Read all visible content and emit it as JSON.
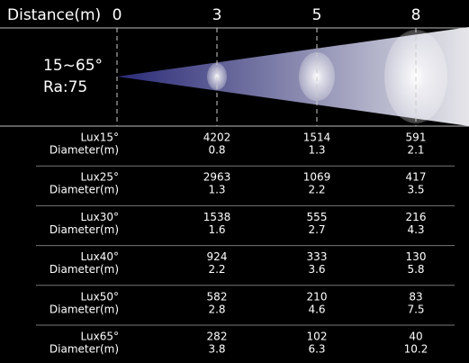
{
  "header": {
    "title": "Distance(m)",
    "distances": [
      0,
      3,
      5,
      8
    ]
  },
  "beam": {
    "angle": "15~65°",
    "ra": "Ra:75"
  },
  "table": {
    "groups": [
      {
        "lux_label": "Lux15°",
        "diameter_label": "Diameter(m)",
        "lux": [
          4202,
          1514,
          591
        ],
        "diameter": [
          0.8,
          1.3,
          2.1
        ]
      },
      {
        "lux_label": "Lux25°",
        "diameter_label": "Diameter(m)",
        "lux": [
          2963,
          1069,
          417
        ],
        "diameter": [
          1.3,
          2.2,
          3.5
        ]
      },
      {
        "lux_label": "Lux30°",
        "diameter_label": "Diameter(m)",
        "lux": [
          1538,
          555,
          216
        ],
        "diameter": [
          1.6,
          2.7,
          4.3
        ]
      },
      {
        "lux_label": "Lux40°",
        "diameter_label": "Diameter(m)",
        "lux": [
          924,
          333,
          130
        ],
        "diameter": [
          2.2,
          3.6,
          5.8
        ]
      },
      {
        "lux_label": "Lux50°",
        "diameter_label": "Diameter(m)",
        "lux": [
          582,
          210,
          83
        ],
        "diameter": [
          2.8,
          4.6,
          7.5
        ]
      },
      {
        "lux_label": "Lux65°",
        "diameter_label": "Diameter(m)",
        "lux": [
          282,
          102,
          40
        ],
        "diameter": [
          3.8,
          6.3,
          10.2
        ]
      }
    ]
  }
}
